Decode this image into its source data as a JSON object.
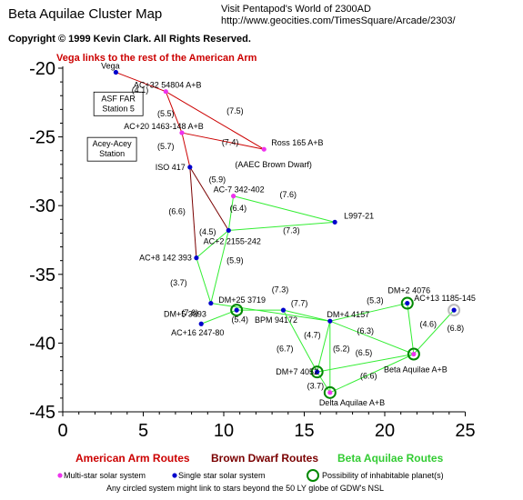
{
  "title": "Beta Aquilae Cluster Map",
  "copyright": "Copyright © 1999 Kevin Clark.  All Rights Reserved.",
  "visit_line": "Visit Pentapod's World of 2300AD",
  "url_line": "http://www.geocities.com/TimesSquare/Arcade/2303/",
  "vega_note": "Vega links to the rest of the American Arm",
  "colors": {
    "american": "#cc0000",
    "brown": "#7a0000",
    "beta": "#33ee33",
    "multi": "#ee33ee",
    "single": "#0000cc",
    "habitable": "#008800"
  },
  "axes": {
    "x_ticks": [
      "0",
      "5",
      "10",
      "15",
      "20",
      "25"
    ],
    "y_ticks": [
      "-20",
      "-25",
      "-30",
      "-35",
      "-40",
      "-45"
    ]
  },
  "systems": [
    {
      "id": "vega",
      "label": "Vega",
      "x": 3.3,
      "y": -20.3,
      "type": "single"
    },
    {
      "id": "ac32",
      "label": "AC+32 54804 A+B",
      "x": 6.4,
      "y": -21.7,
      "type": "multi"
    },
    {
      "id": "ac20",
      "label": "AC+20 1463-148 A+B",
      "x": 7.4,
      "y": -24.7,
      "type": "multi"
    },
    {
      "id": "ross165",
      "label": "Ross 165 A+B",
      "x": 12.5,
      "y": -25.9,
      "type": "multi"
    },
    {
      "id": "iso417",
      "label": "ISO 417",
      "x": 7.9,
      "y": -27.2,
      "type": "single"
    },
    {
      "id": "ac7",
      "label": "AC-7 342-402",
      "x": 10.6,
      "y": -29.3,
      "type": "multi"
    },
    {
      "id": "l997",
      "label": "L997-21",
      "x": 16.9,
      "y": -31.2,
      "type": "single"
    },
    {
      "id": "ac2",
      "label": "AC+2 2155-242",
      "x": 10.3,
      "y": -31.8,
      "type": "single"
    },
    {
      "id": "ac8",
      "label": "AC+8 142 393",
      "x": 8.3,
      "y": -33.8,
      "type": "single"
    },
    {
      "id": "dm5",
      "label": "DM+5 3993",
      "x": 9.2,
      "y": -37.1,
      "type": "single"
    },
    {
      "id": "dm25",
      "label": "DM+25 3719",
      "x": 10.8,
      "y": -37.6,
      "type": "single",
      "habitable": true
    },
    {
      "id": "ac16",
      "label": "AC+16 247-80",
      "x": 8.6,
      "y": -38.6,
      "type": "single"
    },
    {
      "id": "bpm",
      "label": "BPM 94172",
      "x": 13.7,
      "y": -37.6,
      "type": "single"
    },
    {
      "id": "dm4",
      "label": "DM+4 4157",
      "x": 16.6,
      "y": -38.4,
      "type": "single"
    },
    {
      "id": "dm2",
      "label": "DM+2 4076",
      "x": 21.4,
      "y": -37.1,
      "type": "single",
      "habitable": true
    },
    {
      "id": "ac13",
      "label": "AC+13 1185-145",
      "x": 24.3,
      "y": -37.6,
      "type": "single",
      "circle": "grey"
    },
    {
      "id": "dm7",
      "label": "DM+7 4052",
      "x": 15.8,
      "y": -42.1,
      "type": "single",
      "habitable": true
    },
    {
      "id": "delta",
      "label": "Delta Aquilae A+B",
      "x": 16.6,
      "y": -43.6,
      "type": "multi",
      "habitable": true
    },
    {
      "id": "beta",
      "label": "Beta Aquilae A+B",
      "x": 21.8,
      "y": -40.8,
      "type": "multi",
      "habitable": true
    }
  ],
  "station_boxes": [
    {
      "id": "asf-far",
      "lines": [
        "ASF FAR",
        "Station 5"
      ],
      "x": 2.1,
      "y": -22.4
    },
    {
      "id": "acey",
      "lines": [
        "Acey-Acey",
        "Station"
      ],
      "x": 1.7,
      "y": -25.7
    }
  ],
  "annotations": [
    {
      "id": "aaec",
      "text": "(AAEC Brown Dwarf)",
      "x": 10.7,
      "y": -27.2
    }
  ],
  "routes": [
    {
      "from": "vega",
      "to": "ac32",
      "kind": "american",
      "label": "(4.1)",
      "lx": 4.8,
      "ly": -21.8
    },
    {
      "from": "ac32",
      "to": "ac20",
      "kind": "american",
      "label": "(5.5)",
      "lx": 6.4,
      "ly": -23.5
    },
    {
      "from": "ac32",
      "to": "ross165",
      "kind": "american",
      "label": "(7.5)",
      "lx": 10.7,
      "ly": -23.3
    },
    {
      "from": "ac20",
      "to": "ross165",
      "kind": "american",
      "label": "(7.4)",
      "lx": 10.4,
      "ly": -25.6
    },
    {
      "from": "ac20",
      "to": "iso417",
      "kind": "american",
      "label": "(5.7)",
      "lx": 6.4,
      "ly": -25.9
    },
    {
      "from": "iso417",
      "to": "ac2",
      "kind": "brown",
      "label": "(5.9)",
      "lx": 9.6,
      "ly": -28.3
    },
    {
      "from": "iso417",
      "to": "ac8",
      "kind": "brown",
      "label": "(6.6)",
      "lx": 7.1,
      "ly": -30.6
    },
    {
      "from": "ac7",
      "to": "l997",
      "kind": "beta",
      "label": "(7.6)",
      "lx": 14.0,
      "ly": -29.4
    },
    {
      "from": "ac7",
      "to": "ac2",
      "kind": "beta",
      "label": "(6.4)",
      "lx": 10.9,
      "ly": -30.4
    },
    {
      "from": "ac2",
      "to": "l997",
      "kind": "beta",
      "label": "(7.3)",
      "lx": 14.2,
      "ly": -32.0
    },
    {
      "from": "ac2",
      "to": "ac8",
      "kind": "beta",
      "label": "(4.5)",
      "lx": 9.0,
      "ly": -32.1
    },
    {
      "from": "ac2",
      "to": "dm5",
      "kind": "beta",
      "label": "(5.9)",
      "lx": 10.7,
      "ly": -34.2
    },
    {
      "from": "ac8",
      "to": "dm5",
      "kind": "beta",
      "label": "(3.7)",
      "lx": 7.2,
      "ly": -35.8
    },
    {
      "from": "dm5",
      "to": "dm4",
      "kind": "beta",
      "label": "(7.3)",
      "lx": 13.5,
      "ly": -36.3
    },
    {
      "from": "ac16",
      "to": "dm25",
      "kind": "beta",
      "label": "(7.6)",
      "lx": 7.9,
      "ly": -38.0
    },
    {
      "from": "dm25",
      "to": "bpm",
      "kind": "beta",
      "label": "(5.4)",
      "lx": 11.0,
      "ly": -38.5
    },
    {
      "from": "bpm",
      "to": "dm4",
      "kind": "beta",
      "label": "(7.7)",
      "lx": 14.7,
      "ly": -37.3
    },
    {
      "from": "bpm",
      "to": "dm7",
      "kind": "beta",
      "label": "(6.7)",
      "lx": 13.8,
      "ly": -40.6
    },
    {
      "from": "dm4",
      "to": "dm2",
      "kind": "beta",
      "label": "(5.3)",
      "lx": 19.4,
      "ly": -37.1
    },
    {
      "from": "dm4",
      "to": "dm7",
      "kind": "beta",
      "label": "(4.7)",
      "lx": 15.5,
      "ly": -39.6
    },
    {
      "from": "dm4",
      "to": "delta",
      "kind": "beta",
      "label": "(5.2)",
      "lx": 17.3,
      "ly": -40.6
    },
    {
      "from": "dm4",
      "to": "beta",
      "kind": "beta",
      "label": "(6.3)",
      "lx": 18.8,
      "ly": -39.3
    },
    {
      "from": "dm2",
      "to": "beta",
      "kind": "beta",
      "label": "(4.6)",
      "lx": 22.7,
      "ly": -38.8
    },
    {
      "from": "ac13",
      "to": "beta",
      "kind": "beta",
      "label": "(6.8)",
      "lx": 24.4,
      "ly": -39.1
    },
    {
      "from": "dm7",
      "to": "beta",
      "kind": "beta",
      "label": "(6.5)",
      "lx": 18.7,
      "ly": -40.9
    },
    {
      "from": "dm7",
      "to": "delta",
      "kind": "beta",
      "label": "(3.7)",
      "lx": 15.7,
      "ly": -43.3
    },
    {
      "from": "delta",
      "to": "beta",
      "kind": "beta",
      "label": "(6.6)",
      "lx": 19.0,
      "ly": -42.6
    }
  ],
  "legend": {
    "american": "American Arm Routes",
    "brown": "Brown Dwarf Routes",
    "beta": "Beta Aquilae Routes"
  },
  "key": {
    "multi": "Multi-star solar system",
    "single": "Single star solar system",
    "habitable": "Possibility of inhabitable planet(s)"
  },
  "footnote": "Any circled system might link to stars  beyond the 50 LY globe of GDW's NSL"
}
